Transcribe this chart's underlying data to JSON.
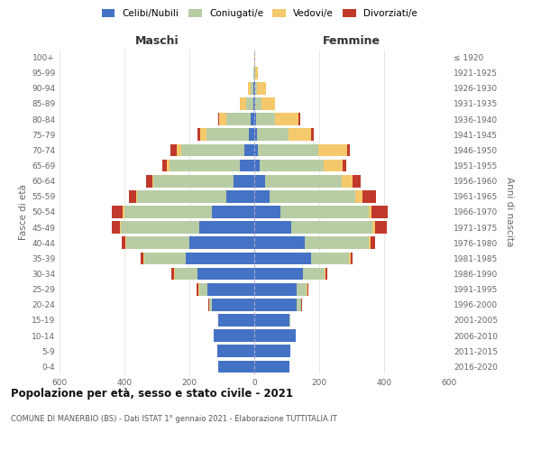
{
  "age_groups": [
    "0-4",
    "5-9",
    "10-14",
    "15-19",
    "20-24",
    "25-29",
    "30-34",
    "35-39",
    "40-44",
    "45-49",
    "50-54",
    "55-59",
    "60-64",
    "65-69",
    "70-74",
    "75-79",
    "80-84",
    "85-89",
    "90-94",
    "95-99",
    "100+"
  ],
  "birth_years": [
    "2016-2020",
    "2011-2015",
    "2006-2010",
    "2001-2005",
    "1996-2000",
    "1991-1995",
    "1986-1990",
    "1981-1985",
    "1976-1980",
    "1971-1975",
    "1966-1970",
    "1961-1965",
    "1956-1960",
    "1951-1955",
    "1946-1950",
    "1941-1945",
    "1936-1940",
    "1931-1935",
    "1926-1930",
    "1921-1925",
    "≤ 1920"
  ],
  "colors": {
    "celibe": "#4472c4",
    "coniugato": "#b8cca4",
    "vedovo": "#f5c96b",
    "divorziato": "#c0392b"
  },
  "maschi": {
    "celibe": [
      110,
      115,
      125,
      110,
      130,
      145,
      175,
      210,
      200,
      170,
      130,
      85,
      65,
      45,
      30,
      18,
      10,
      4,
      2,
      1,
      0
    ],
    "coniugato": [
      0,
      0,
      0,
      2,
      10,
      25,
      70,
      130,
      195,
      240,
      270,
      275,
      245,
      215,
      195,
      130,
      75,
      22,
      8,
      2,
      1
    ],
    "vedovo": [
      0,
      0,
      0,
      0,
      0,
      2,
      2,
      2,
      2,
      4,
      5,
      5,
      5,
      10,
      15,
      18,
      22,
      18,
      10,
      1,
      0
    ],
    "divorziato": [
      0,
      0,
      0,
      0,
      2,
      5,
      8,
      8,
      12,
      25,
      35,
      22,
      18,
      12,
      18,
      8,
      5,
      0,
      0,
      0,
      0
    ]
  },
  "femmine": {
    "nubile": [
      108,
      112,
      128,
      108,
      130,
      130,
      150,
      175,
      155,
      115,
      80,
      48,
      32,
      18,
      12,
      8,
      5,
      3,
      2,
      1,
      0
    ],
    "coniugata": [
      0,
      0,
      0,
      3,
      14,
      32,
      68,
      118,
      198,
      248,
      272,
      262,
      238,
      195,
      185,
      98,
      60,
      18,
      5,
      1,
      0
    ],
    "vedova": [
      0,
      0,
      0,
      0,
      0,
      1,
      2,
      3,
      5,
      8,
      10,
      22,
      32,
      58,
      88,
      68,
      72,
      42,
      28,
      8,
      2
    ],
    "divorziata": [
      0,
      0,
      0,
      0,
      2,
      5,
      5,
      8,
      15,
      36,
      48,
      42,
      26,
      12,
      10,
      8,
      5,
      0,
      0,
      0,
      0
    ]
  },
  "xlim": 600,
  "title": "Popolazione per età, sesso e stato civile - 2021",
  "subtitle": "COMUNE DI MANERBIO (BS) - Dati ISTAT 1° gennaio 2021 - Elaborazione TUTTITALIA.IT",
  "maschi_label": "Maschi",
  "femmine_label": "Femmine",
  "ylabel_left": "Fasce di età",
  "ylabel_right": "Anni di nascita",
  "legend_labels": [
    "Celibi/Nubili",
    "Coniugati/e",
    "Vedovi/e",
    "Divorziati/e"
  ],
  "xtick_vals": [
    -600,
    -400,
    -200,
    0,
    200,
    400,
    600
  ]
}
